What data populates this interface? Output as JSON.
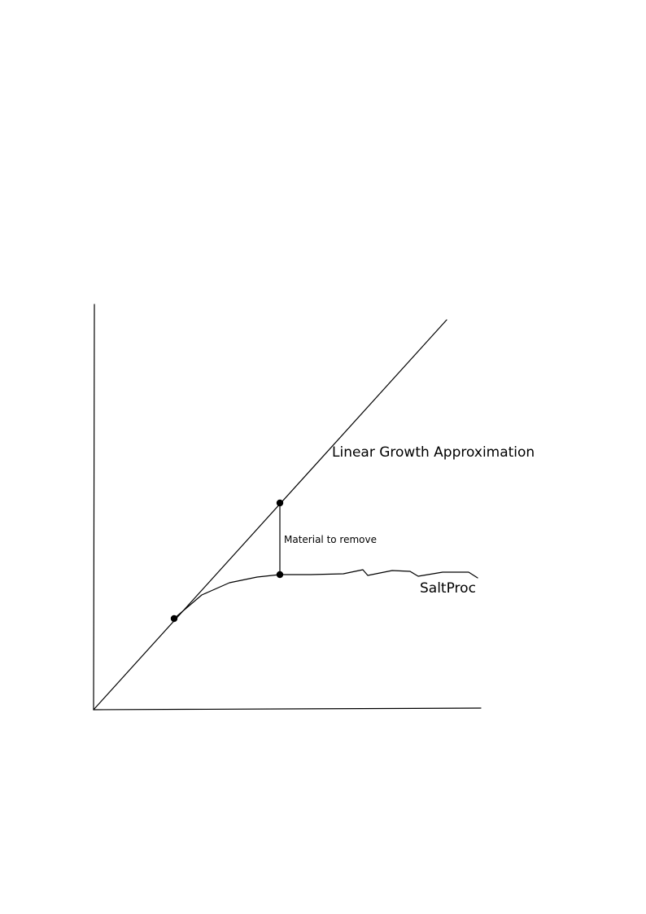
{
  "labels": {
    "linear_growth": "Linear Growth Approximation",
    "saltproc": "SaltProc",
    "material_to_remove": "Material to remove"
  },
  "colors": {
    "ink": "#000000",
    "background": "#ffffff"
  }
}
